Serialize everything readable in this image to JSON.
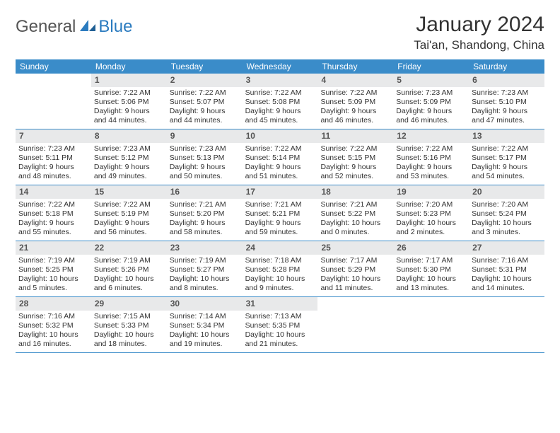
{
  "logo": {
    "general": "General",
    "blue": "Blue"
  },
  "title": "January 2024",
  "location": "Tai'an, Shandong, China",
  "colors": {
    "header_bg": "#3a8cc9",
    "header_text": "#ffffff",
    "daynum_bg": "#e8e9ea",
    "daynum_text": "#555555",
    "body_text": "#333333",
    "rule": "#3a8cc9",
    "logo_blue": "#2b7bbf",
    "logo_grey": "#555555"
  },
  "dow": [
    "Sunday",
    "Monday",
    "Tuesday",
    "Wednesday",
    "Thursday",
    "Friday",
    "Saturday"
  ],
  "weeks": [
    [
      {
        "n": "",
        "sr": "",
        "ss": "",
        "dl": ""
      },
      {
        "n": "1",
        "sr": "Sunrise: 7:22 AM",
        "ss": "Sunset: 5:06 PM",
        "dl": "Daylight: 9 hours and 44 minutes."
      },
      {
        "n": "2",
        "sr": "Sunrise: 7:22 AM",
        "ss": "Sunset: 5:07 PM",
        "dl": "Daylight: 9 hours and 44 minutes."
      },
      {
        "n": "3",
        "sr": "Sunrise: 7:22 AM",
        "ss": "Sunset: 5:08 PM",
        "dl": "Daylight: 9 hours and 45 minutes."
      },
      {
        "n": "4",
        "sr": "Sunrise: 7:22 AM",
        "ss": "Sunset: 5:09 PM",
        "dl": "Daylight: 9 hours and 46 minutes."
      },
      {
        "n": "5",
        "sr": "Sunrise: 7:23 AM",
        "ss": "Sunset: 5:09 PM",
        "dl": "Daylight: 9 hours and 46 minutes."
      },
      {
        "n": "6",
        "sr": "Sunrise: 7:23 AM",
        "ss": "Sunset: 5:10 PM",
        "dl": "Daylight: 9 hours and 47 minutes."
      }
    ],
    [
      {
        "n": "7",
        "sr": "Sunrise: 7:23 AM",
        "ss": "Sunset: 5:11 PM",
        "dl": "Daylight: 9 hours and 48 minutes."
      },
      {
        "n": "8",
        "sr": "Sunrise: 7:23 AM",
        "ss": "Sunset: 5:12 PM",
        "dl": "Daylight: 9 hours and 49 minutes."
      },
      {
        "n": "9",
        "sr": "Sunrise: 7:23 AM",
        "ss": "Sunset: 5:13 PM",
        "dl": "Daylight: 9 hours and 50 minutes."
      },
      {
        "n": "10",
        "sr": "Sunrise: 7:22 AM",
        "ss": "Sunset: 5:14 PM",
        "dl": "Daylight: 9 hours and 51 minutes."
      },
      {
        "n": "11",
        "sr": "Sunrise: 7:22 AM",
        "ss": "Sunset: 5:15 PM",
        "dl": "Daylight: 9 hours and 52 minutes."
      },
      {
        "n": "12",
        "sr": "Sunrise: 7:22 AM",
        "ss": "Sunset: 5:16 PM",
        "dl": "Daylight: 9 hours and 53 minutes."
      },
      {
        "n": "13",
        "sr": "Sunrise: 7:22 AM",
        "ss": "Sunset: 5:17 PM",
        "dl": "Daylight: 9 hours and 54 minutes."
      }
    ],
    [
      {
        "n": "14",
        "sr": "Sunrise: 7:22 AM",
        "ss": "Sunset: 5:18 PM",
        "dl": "Daylight: 9 hours and 55 minutes."
      },
      {
        "n": "15",
        "sr": "Sunrise: 7:22 AM",
        "ss": "Sunset: 5:19 PM",
        "dl": "Daylight: 9 hours and 56 minutes."
      },
      {
        "n": "16",
        "sr": "Sunrise: 7:21 AM",
        "ss": "Sunset: 5:20 PM",
        "dl": "Daylight: 9 hours and 58 minutes."
      },
      {
        "n": "17",
        "sr": "Sunrise: 7:21 AM",
        "ss": "Sunset: 5:21 PM",
        "dl": "Daylight: 9 hours and 59 minutes."
      },
      {
        "n": "18",
        "sr": "Sunrise: 7:21 AM",
        "ss": "Sunset: 5:22 PM",
        "dl": "Daylight: 10 hours and 0 minutes."
      },
      {
        "n": "19",
        "sr": "Sunrise: 7:20 AM",
        "ss": "Sunset: 5:23 PM",
        "dl": "Daylight: 10 hours and 2 minutes."
      },
      {
        "n": "20",
        "sr": "Sunrise: 7:20 AM",
        "ss": "Sunset: 5:24 PM",
        "dl": "Daylight: 10 hours and 3 minutes."
      }
    ],
    [
      {
        "n": "21",
        "sr": "Sunrise: 7:19 AM",
        "ss": "Sunset: 5:25 PM",
        "dl": "Daylight: 10 hours and 5 minutes."
      },
      {
        "n": "22",
        "sr": "Sunrise: 7:19 AM",
        "ss": "Sunset: 5:26 PM",
        "dl": "Daylight: 10 hours and 6 minutes."
      },
      {
        "n": "23",
        "sr": "Sunrise: 7:19 AM",
        "ss": "Sunset: 5:27 PM",
        "dl": "Daylight: 10 hours and 8 minutes."
      },
      {
        "n": "24",
        "sr": "Sunrise: 7:18 AM",
        "ss": "Sunset: 5:28 PM",
        "dl": "Daylight: 10 hours and 9 minutes."
      },
      {
        "n": "25",
        "sr": "Sunrise: 7:17 AM",
        "ss": "Sunset: 5:29 PM",
        "dl": "Daylight: 10 hours and 11 minutes."
      },
      {
        "n": "26",
        "sr": "Sunrise: 7:17 AM",
        "ss": "Sunset: 5:30 PM",
        "dl": "Daylight: 10 hours and 13 minutes."
      },
      {
        "n": "27",
        "sr": "Sunrise: 7:16 AM",
        "ss": "Sunset: 5:31 PM",
        "dl": "Daylight: 10 hours and 14 minutes."
      }
    ],
    [
      {
        "n": "28",
        "sr": "Sunrise: 7:16 AM",
        "ss": "Sunset: 5:32 PM",
        "dl": "Daylight: 10 hours and 16 minutes."
      },
      {
        "n": "29",
        "sr": "Sunrise: 7:15 AM",
        "ss": "Sunset: 5:33 PM",
        "dl": "Daylight: 10 hours and 18 minutes."
      },
      {
        "n": "30",
        "sr": "Sunrise: 7:14 AM",
        "ss": "Sunset: 5:34 PM",
        "dl": "Daylight: 10 hours and 19 minutes."
      },
      {
        "n": "31",
        "sr": "Sunrise: 7:13 AM",
        "ss": "Sunset: 5:35 PM",
        "dl": "Daylight: 10 hours and 21 minutes."
      },
      {
        "n": "",
        "sr": "",
        "ss": "",
        "dl": ""
      },
      {
        "n": "",
        "sr": "",
        "ss": "",
        "dl": ""
      },
      {
        "n": "",
        "sr": "",
        "ss": "",
        "dl": ""
      }
    ]
  ]
}
